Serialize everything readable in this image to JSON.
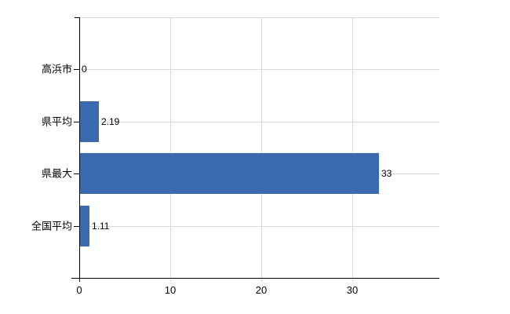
{
  "chart": {
    "bar_color": "#3c6aae",
    "grid_color": "#d9d9d9",
    "axis_color": "#000000",
    "text_color": "#000000",
    "background": "#ffffff"
  },
  "chart_data": {
    "type": "bar",
    "orientation": "horizontal",
    "title": "",
    "xlabel": "",
    "ylabel": "",
    "categories": [
      "高浜市",
      "県平均",
      "県最大",
      "全国平均"
    ],
    "values": [
      0,
      2.19,
      33,
      1.11
    ],
    "value_labels": [
      "0",
      "2.19",
      "33",
      "1.11"
    ],
    "x_ticks": [
      0,
      10,
      20,
      30
    ],
    "x_tick_labels": [
      "0",
      "10",
      "20",
      "30"
    ],
    "xlim": [
      0,
      39.6
    ],
    "grid": true,
    "legend": false
  }
}
